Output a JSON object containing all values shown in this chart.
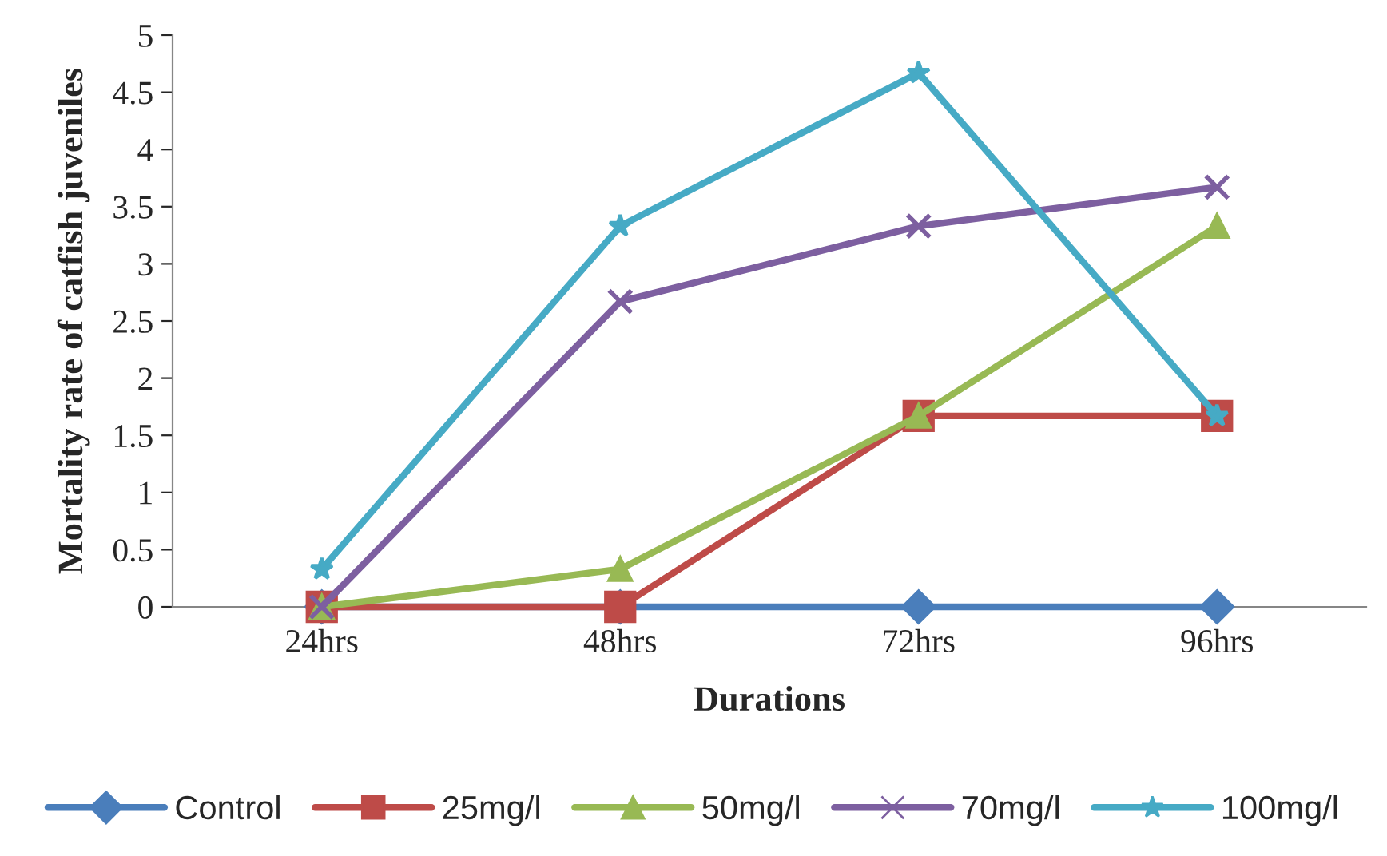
{
  "chart_data": {
    "type": "line",
    "xlabel": "Durations",
    "ylabel": "Mortality rate of catfish juveniles",
    "categories": [
      "24hrs",
      "48hrs",
      "72hrs",
      "96hrs"
    ],
    "series": [
      {
        "name": "Control",
        "color": "#4a7ebb",
        "marker": "diamond",
        "values": [
          0,
          0,
          0,
          0
        ]
      },
      {
        "name": "25mg/l",
        "color": "#be4b48",
        "marker": "square",
        "values": [
          0,
          0,
          1.67,
          1.67
        ]
      },
      {
        "name": "50mg/l",
        "color": "#98b954",
        "marker": "triangle",
        "values": [
          0,
          0.33,
          1.67,
          3.33
        ]
      },
      {
        "name": "70mg/l",
        "color": "#7d5fa0",
        "marker": "cross",
        "values": [
          0,
          2.67,
          3.33,
          3.67
        ]
      },
      {
        "name": "100mg/l",
        "color": "#46aac5",
        "marker": "star",
        "values": [
          0.33,
          3.33,
          4.67,
          1.67
        ]
      }
    ],
    "ylim": [
      0,
      5
    ],
    "yticks": [
      0,
      0.5,
      1,
      1.5,
      2,
      2.5,
      3,
      3.5,
      4,
      4.5,
      5
    ],
    "grid": false,
    "legend": "bottom",
    "line_style": "solid"
  }
}
